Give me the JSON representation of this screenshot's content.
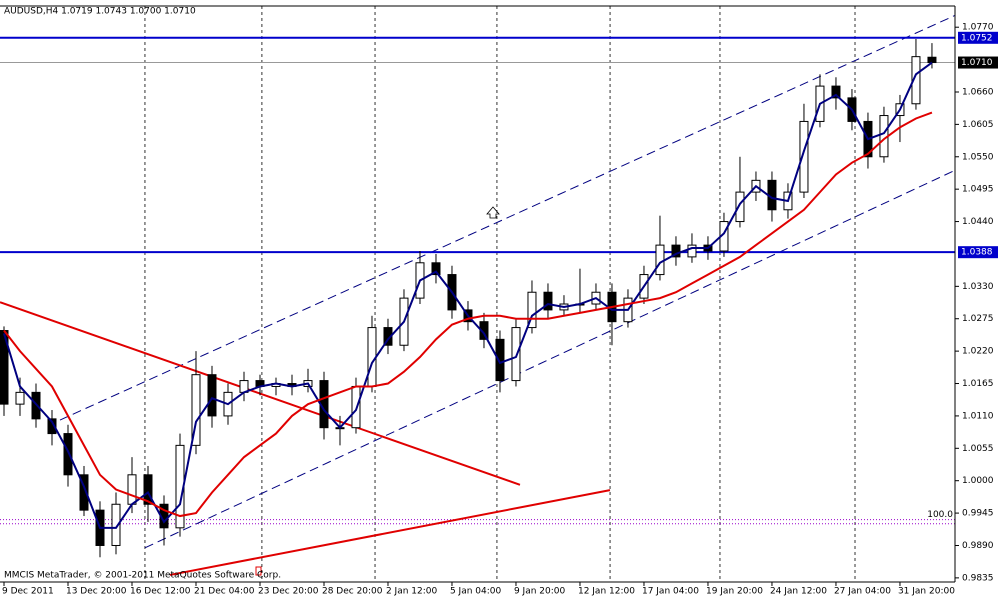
{
  "chart_data": {
    "type": "candlestick",
    "title": "AUDUSD,H4  1.0719 1.0743 1.0700 1.0710",
    "footer": "MMCIS MetaTrader, © 2001-2011 MetaQuotes Software Corp.",
    "open": [
      1.0255,
      1.013,
      1.015,
      1.0105,
      1.008,
      1.001,
      0.995,
      0.989,
      0.996,
      1.001,
      0.996,
      0.992,
      1.006,
      1.018,
      1.011,
      1.015,
      1.017,
      1.016,
      1.0165,
      1.016,
      1.017,
      1.009,
      1.009,
      1.016,
      1.026,
      1.023,
      1.031,
      1.037,
      1.035,
      1.029,
      1.027,
      1.024,
      1.017,
      1.026,
      1.032,
      1.029,
      1.03,
      1.03,
      1.032,
      1.027,
      1.031,
      1.035,
      1.04,
      1.038,
      1.04,
      1.039,
      1.044,
      1.049,
      1.051,
      1.046,
      1.049,
      1.061,
      1.067,
      1.065,
      1.061,
      1.055,
      1.062,
      1.064,
      1.0719
    ],
    "high": [
      1.0262,
      1.0175,
      1.0165,
      1.012,
      1.0095,
      1.0025,
      0.9965,
      0.998,
      1.004,
      1.0025,
      0.9975,
      1.008,
      1.022,
      1.0195,
      1.0165,
      1.0185,
      1.018,
      1.0175,
      1.018,
      1.019,
      1.0185,
      1.011,
      1.0175,
      1.028,
      1.0275,
      1.0325,
      1.039,
      1.0385,
      1.0365,
      1.0305,
      1.0285,
      1.0255,
      1.0275,
      1.034,
      1.0335,
      1.0315,
      1.036,
      1.0335,
      1.0335,
      1.0325,
      1.0365,
      1.045,
      1.0415,
      1.042,
      1.0415,
      1.0455,
      1.055,
      1.0525,
      1.0525,
      1.0505,
      1.064,
      1.069,
      1.0685,
      1.0665,
      1.0625,
      1.0635,
      1.0655,
      1.075,
      1.0743
    ],
    "low": [
      1.011,
      1.011,
      1.009,
      1.006,
      0.999,
      0.994,
      0.987,
      0.9875,
      0.9945,
      0.993,
      0.989,
      0.9905,
      1.0045,
      1.009,
      1.0095,
      1.0135,
      1.0145,
      1.0145,
      1.0145,
      1.015,
      1.007,
      1.006,
      1.008,
      1.015,
      1.0215,
      1.022,
      1.03,
      1.0335,
      1.0275,
      1.0255,
      1.0225,
      1.015,
      1.016,
      1.025,
      1.0275,
      1.028,
      1.0285,
      1.029,
      1.023,
      1.026,
      1.03,
      1.034,
      1.0365,
      1.037,
      1.0375,
      1.038,
      1.043,
      1.0475,
      1.044,
      1.0445,
      1.048,
      1.06,
      1.063,
      1.0595,
      1.053,
      1.054,
      1.0575,
      1.063,
      1.07
    ],
    "close": [
      1.013,
      1.015,
      1.0105,
      1.008,
      1.001,
      0.995,
      0.989,
      0.996,
      1.001,
      0.996,
      0.992,
      1.006,
      1.018,
      1.011,
      1.015,
      1.017,
      1.016,
      1.0165,
      1.016,
      1.017,
      1.009,
      1.009,
      1.016,
      1.026,
      1.023,
      1.031,
      1.037,
      1.035,
      1.029,
      1.027,
      1.024,
      1.017,
      1.026,
      1.032,
      1.029,
      1.03,
      1.03,
      1.032,
      1.027,
      1.031,
      1.035,
      1.04,
      1.038,
      1.04,
      1.039,
      1.044,
      1.049,
      1.051,
      1.046,
      1.049,
      1.061,
      1.067,
      1.065,
      1.061,
      1.055,
      1.062,
      1.064,
      1.072,
      1.071
    ],
    "up_color": "#ffffff",
    "down_color": "#000000",
    "lines": [
      {
        "color": "#000080",
        "values": [
          1.025,
          1.016,
          1.013,
          1.01,
          1.005,
          0.999,
          0.992,
          0.992,
          0.996,
          0.998,
          0.993,
          0.996,
          1.01,
          1.014,
          1.013,
          1.015,
          1.016,
          1.0165,
          1.016,
          1.0165,
          1.012,
          1.009,
          1.012,
          1.02,
          1.024,
          1.027,
          1.034,
          1.0355,
          1.032,
          1.028,
          1.025,
          1.02,
          1.021,
          1.028,
          1.03,
          1.0295,
          1.03,
          1.031,
          1.029,
          1.029,
          1.033,
          1.037,
          1.0385,
          1.0395,
          1.0395,
          1.042,
          1.047,
          1.05,
          1.048,
          1.0475,
          1.056,
          1.064,
          1.0655,
          1.063,
          1.058,
          1.059,
          1.063,
          1.069,
          1.071
        ]
      },
      {
        "color": "#e00000",
        "values": [
          1.0255,
          1.022,
          1.019,
          1.016,
          1.011,
          1.006,
          1.001,
          0.9985,
          0.9975,
          0.9965,
          0.995,
          0.994,
          0.9945,
          0.998,
          1.001,
          1.004,
          1.006,
          1.008,
          1.011,
          1.013,
          1.014,
          1.015,
          1.016,
          1.016,
          1.0165,
          1.0185,
          1.021,
          1.024,
          1.0265,
          1.0275,
          1.028,
          1.028,
          1.0275,
          1.0275,
          1.0275,
          1.028,
          1.0285,
          1.029,
          1.0295,
          1.03,
          1.0305,
          1.031,
          1.032,
          1.0335,
          1.035,
          1.0365,
          1.038,
          1.04,
          1.042,
          1.044,
          1.046,
          1.049,
          1.052,
          1.054,
          1.0555,
          1.058,
          1.06,
          1.0615,
          1.0625
        ]
      }
    ],
    "xlim": [
      -0.25,
      59.44
    ],
    "ylim": [
      0.9828,
      1.0806
    ],
    "xticks": [
      {
        "value": 0,
        "label": "9 Dec 2011"
      },
      {
        "value": 4,
        "label": "13 Dec 20:00"
      },
      {
        "value": 8,
        "label": "16 Dec 12:00"
      },
      {
        "value": 12,
        "label": "21 Dec 04:00"
      },
      {
        "value": 16,
        "label": "23 Dec 20:00"
      },
      {
        "value": 20,
        "label": "28 Dec 20:00"
      },
      {
        "value": 24,
        "label": "2 Jan 12:00"
      },
      {
        "value": 28,
        "label": "5 Jan 04:00"
      },
      {
        "value": 32,
        "label": "9 Jan 20:00"
      },
      {
        "value": 36,
        "label": "12 Jan 12:00"
      },
      {
        "value": 40,
        "label": "17 Jan 04:00"
      },
      {
        "value": 44,
        "label": "19 Jan 20:00"
      },
      {
        "value": 48,
        "label": "24 Jan 12:00"
      },
      {
        "value": 52,
        "label": "27 Jan 04:00"
      },
      {
        "value": 56,
        "label": "31 Jan 20:00"
      }
    ],
    "yticks": [
      {
        "value": 1.077,
        "label": "1.0770"
      },
      {
        "value": 1.066,
        "label": "1.0660"
      },
      1.0605,
      {
        "value": 1.055,
        "label": "1.0550"
      },
      1.0495,
      {
        "value": 1.044,
        "label": "1.0440"
      },
      {
        "value": 1.033,
        "label": "1.0330"
      },
      1.0275,
      {
        "value": 1.022,
        "label": "1.0220"
      },
      1.0165,
      {
        "value": 1.011,
        "label": "1.0110"
      },
      1.0055,
      {
        "value": 1.0,
        "label": "1.0000"
      },
      0.9945,
      {
        "value": 0.989,
        "label": "0.9890"
      },
      0.9835
    ],
    "separators": [
      8.81,
      16.12,
      23.19,
      30.81,
      37.88,
      44.75,
      53.19
    ],
    "price_lines": [
      1.0752,
      1.0388
    ],
    "price_line_color": "#0000cc",
    "current_price": {
      "value": 1.071,
      "label": "1.0710"
    },
    "fibo_lines": [
      0.9934,
      0.9927
    ],
    "fibo_label": "100.0",
    "fibo_color": "#9900cc",
    "trendlines": [
      {
        "color": "#000080",
        "dashed": true,
        "points": [
          [
            3.5,
            1.0103
          ],
          [
            59.44,
            1.079
          ]
        ]
      },
      {
        "color": "#000080",
        "dashed": true,
        "points": [
          [
            8.81,
            0.9886
          ],
          [
            59.44,
            1.0527
          ]
        ]
      },
      {
        "color": "#e00000",
        "dashed": false,
        "points": [
          [
            -0.25,
            1.0303
          ],
          [
            32.25,
            0.9993
          ]
        ]
      },
      {
        "color": "#e00000",
        "dashed": false,
        "points": [
          [
            10.375,
            0.984
          ],
          [
            37.875,
            0.9984
          ]
        ]
      }
    ]
  }
}
